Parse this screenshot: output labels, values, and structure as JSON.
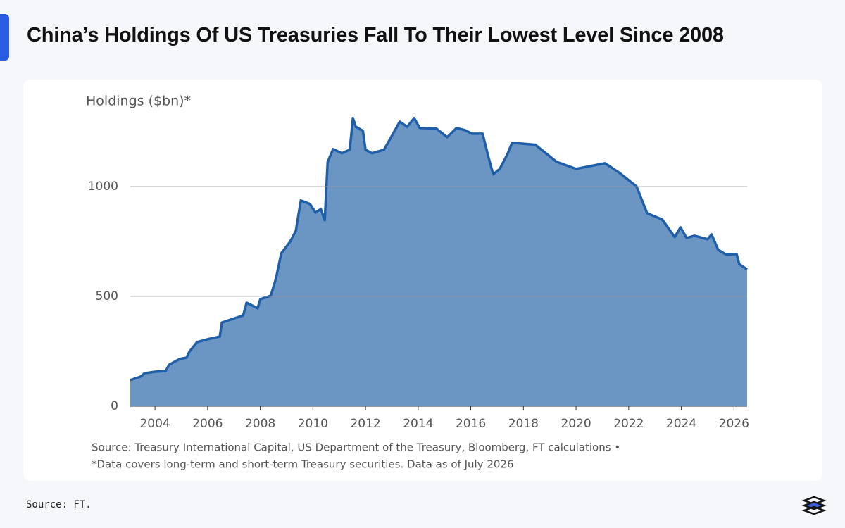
{
  "header": {
    "title": "China’s Holdings Of US Treasuries Fall To Their Lowest Level Since 2008"
  },
  "chart_data": {
    "type": "area",
    "y_label": "Holdings ($bn)*",
    "x": [
      2003.06,
      2003.46,
      2003.6,
      2004.0,
      2004.4,
      2004.54,
      2004.94,
      2005.2,
      2005.3,
      2005.6,
      2006.0,
      2006.46,
      2006.54,
      2006.94,
      2007.35,
      2007.48,
      2007.9,
      2008.0,
      2008.4,
      2008.6,
      2008.8,
      2009.14,
      2009.35,
      2009.54,
      2009.89,
      2010.1,
      2010.3,
      2010.45,
      2010.56,
      2010.77,
      2011.1,
      2011.4,
      2011.52,
      2011.63,
      2011.9,
      2012.0,
      2012.24,
      2012.7,
      2012.97,
      2013.3,
      2013.58,
      2013.85,
      2014.06,
      2014.7,
      2015.1,
      2015.46,
      2015.78,
      2016.05,
      2016.45,
      2016.66,
      2016.85,
      2017.1,
      2017.38,
      2017.57,
      2018.45,
      2019.26,
      2020.0,
      2021.1,
      2021.67,
      2022.3,
      2022.7,
      2023.27,
      2023.75,
      2023.97,
      2024.2,
      2024.5,
      2025.0,
      2025.15,
      2025.4,
      2025.7,
      2026.1,
      2026.2,
      2026.5
    ],
    "series": [
      {
        "name": "Holdings",
        "color": "#1f5ea8",
        "fill": "#6b95c2",
        "values": [
          119,
          135,
          150,
          157,
          160,
          189,
          215,
          221,
          247,
          292,
          305,
          317,
          381,
          397,
          413,
          471,
          446,
          487,
          503,
          583,
          696,
          750,
          798,
          936,
          920,
          881,
          897,
          846,
          1112,
          1170,
          1151,
          1167,
          1311,
          1272,
          1253,
          1167,
          1151,
          1167,
          1224,
          1295,
          1272,
          1311,
          1266,
          1263,
          1224,
          1266,
          1256,
          1240,
          1240,
          1138,
          1055,
          1080,
          1144,
          1199,
          1190,
          1112,
          1080,
          1106,
          1060,
          1000,
          878,
          850,
          770,
          814,
          766,
          776,
          760,
          782,
          712,
          690,
          692,
          647,
          622
        ]
      }
    ],
    "xlim": [
      2003.06,
      2026.5
    ],
    "xticks": [
      2004,
      2006,
      2008,
      2010,
      2012,
      2014,
      2016,
      2018,
      2020,
      2022,
      2024,
      2026
    ],
    "ylim": [
      0,
      1400
    ],
    "yticks": [
      0,
      500,
      1000
    ],
    "grid": true,
    "notes": [
      "Source: Treasury International Capital, US Department of the Treasury, Bloomberg, FT calculations •",
      "*Data covers long-term and short-term Treasury securities. Data as of July 2026"
    ]
  },
  "footer": {
    "source": "Source: FT."
  }
}
